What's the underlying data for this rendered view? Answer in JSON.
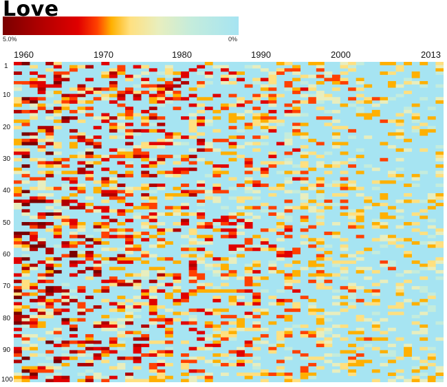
{
  "chart_data": {
    "type": "heatmap",
    "title": "Love",
    "x": {
      "range": [
        1960,
        2013
      ],
      "tick_labels": [
        "1960",
        "1970",
        "1980",
        "1990",
        "2000",
        "2013"
      ]
    },
    "y": {
      "range": [
        1,
        100
      ],
      "tick_labels": [
        "1",
        "10",
        "20",
        "30",
        "40",
        "50",
        "60",
        "70",
        "80",
        "90",
        "100"
      ]
    },
    "colorbar": {
      "max_label": "5.0%",
      "min_label": "0%",
      "scale": [
        "#7a0000",
        "#b00000",
        "#e00000",
        "#ff4000",
        "#ffb000",
        "#ffe080",
        "#e8eebe",
        "#c4ecdc",
        "#a6e4f2"
      ],
      "background": "#a6e4f2"
    },
    "value_range": [
      0,
      5.0
    ]
  }
}
